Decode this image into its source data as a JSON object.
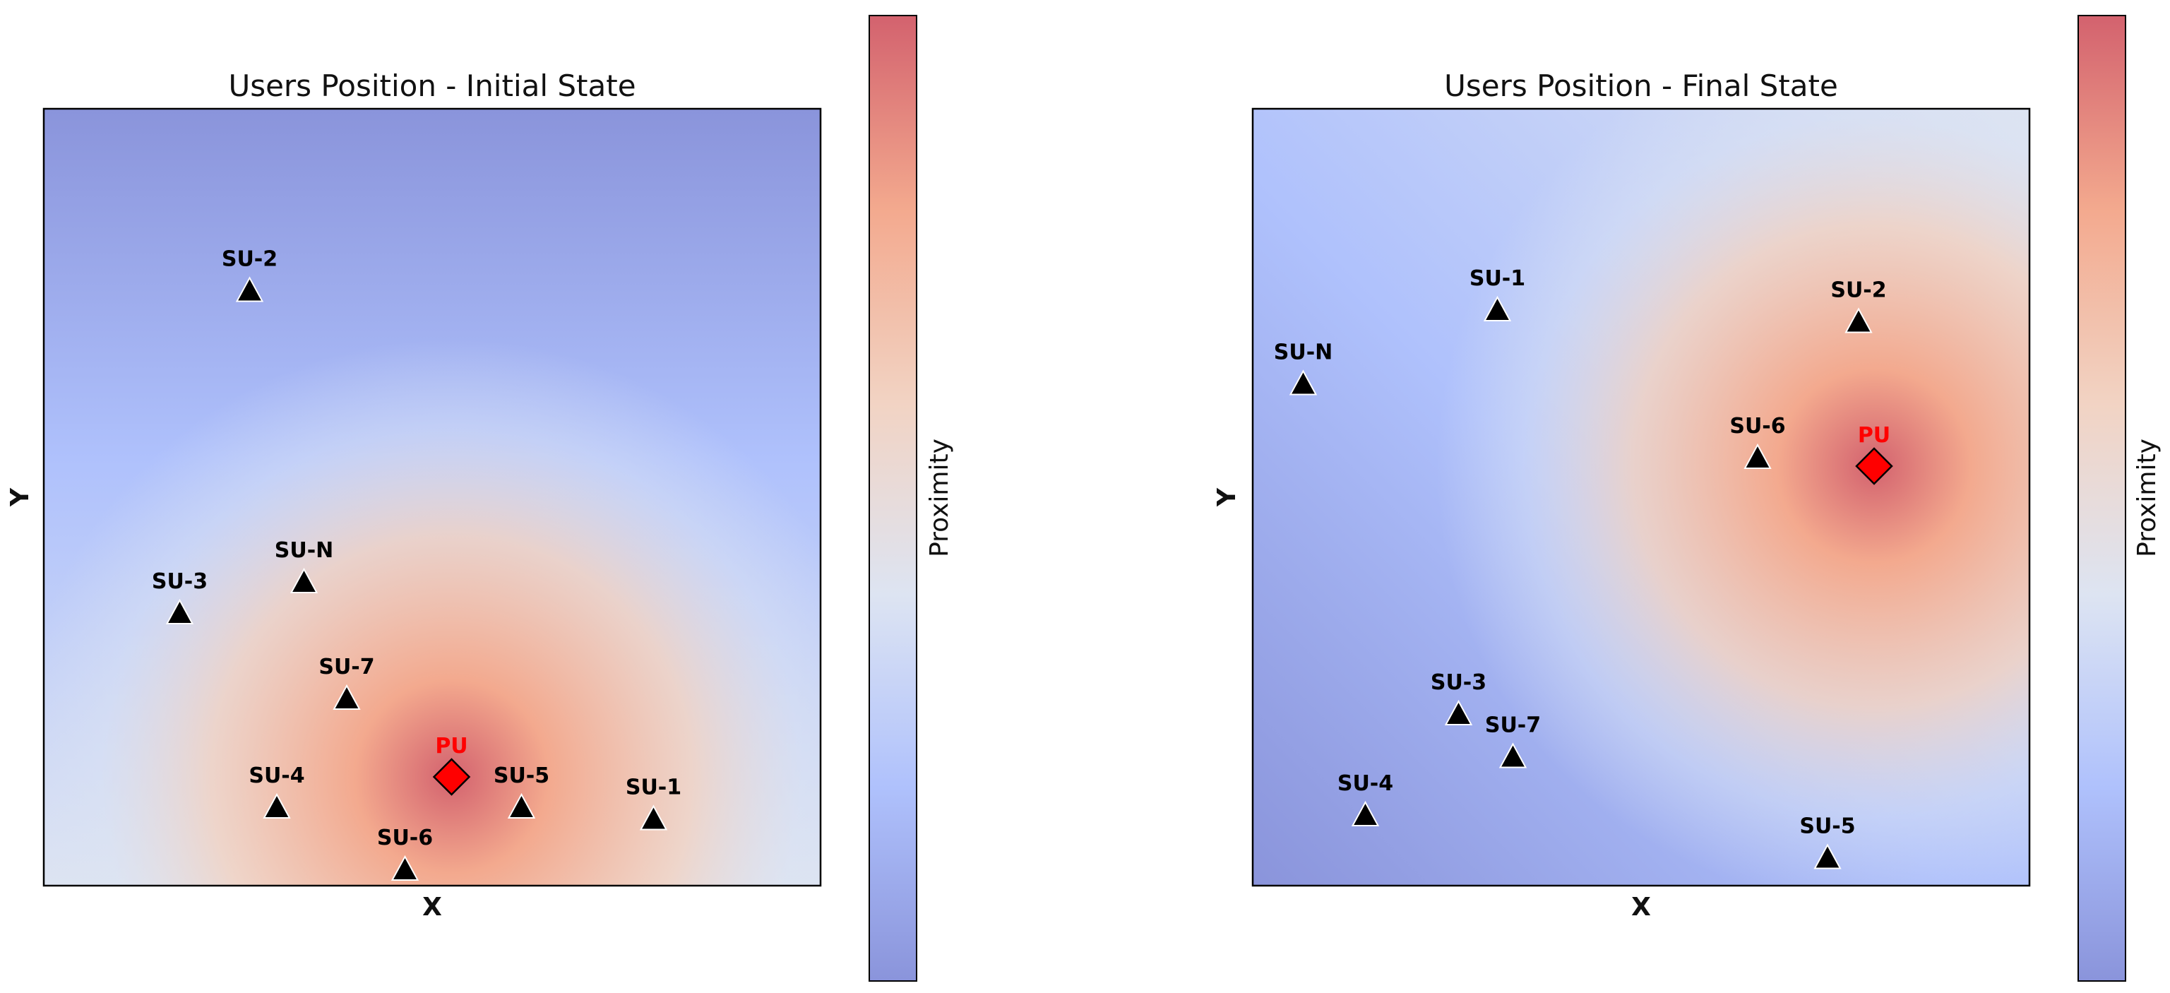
{
  "chart_data": [
    {
      "type": "scatter",
      "title": "Users Position - Initial State",
      "xlabel": "X",
      "ylabel": "Y",
      "xlim": [
        0,
        100
      ],
      "ylim": [
        0,
        100
      ],
      "colorbar_label": "Proximity",
      "heatmap_center": {
        "x": 52.5,
        "y": 14
      },
      "primary_user": {
        "label": "PU",
        "x": 52.5,
        "y": 14,
        "color": "#ff0000"
      },
      "secondary_users": [
        {
          "label": "SU-1",
          "x": 78.5,
          "y": 8.5
        },
        {
          "label": "SU-2",
          "x": 26.5,
          "y": 76.5
        },
        {
          "label": "SU-3",
          "x": 17.5,
          "y": 35
        },
        {
          "label": "SU-4",
          "x": 30,
          "y": 10
        },
        {
          "label": "SU-5",
          "x": 61.5,
          "y": 10
        },
        {
          "label": "SU-6",
          "x": 46.5,
          "y": 2
        },
        {
          "label": "SU-7",
          "x": 39,
          "y": 24
        },
        {
          "label": "SU-N",
          "x": 33.5,
          "y": 39
        }
      ]
    },
    {
      "type": "scatter",
      "title": "Users Position - Final State",
      "xlabel": "X",
      "ylabel": "Y",
      "xlim": [
        0,
        100
      ],
      "ylim": [
        0,
        100
      ],
      "colorbar_label": "Proximity",
      "heatmap_center": {
        "x": 80,
        "y": 54
      },
      "primary_user": {
        "label": "PU",
        "x": 80,
        "y": 54,
        "color": "#ff0000"
      },
      "secondary_users": [
        {
          "label": "SU-1",
          "x": 31.5,
          "y": 74
        },
        {
          "label": "SU-2",
          "x": 78,
          "y": 72.5
        },
        {
          "label": "SU-3",
          "x": 26.5,
          "y": 22
        },
        {
          "label": "SU-4",
          "x": 14.5,
          "y": 9
        },
        {
          "label": "SU-5",
          "x": 74,
          "y": 3.5
        },
        {
          "label": "SU-6",
          "x": 65,
          "y": 55
        },
        {
          "label": "SU-7",
          "x": 33.5,
          "y": 16.5
        },
        {
          "label": "SU-N",
          "x": 6.5,
          "y": 64.5
        }
      ]
    }
  ],
  "colors": {
    "colormap": [
      "#8a94db",
      "#afc1fc",
      "#dde4f2",
      "#f2d3c3",
      "#f3a98e",
      "#d3626e"
    ],
    "marker_su": "#000000",
    "marker_pu": "#ff0000",
    "label_su": "#000000",
    "label_pu": "#ff0000"
  },
  "icons": {
    "secondary_user_marker": "triangle-icon",
    "primary_user_marker": "diamond-icon"
  }
}
